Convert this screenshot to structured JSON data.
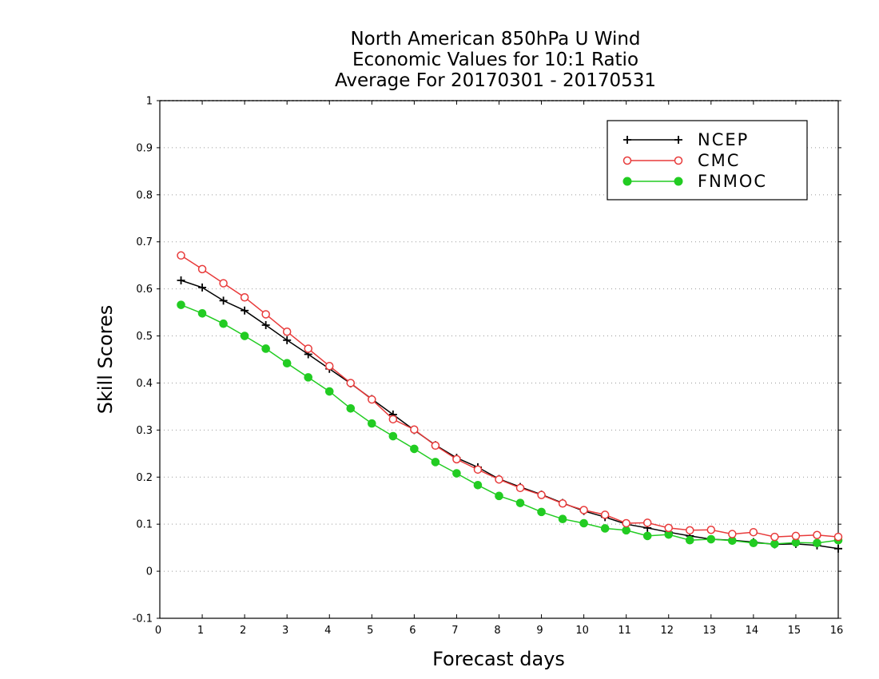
{
  "chart_data": {
    "type": "line",
    "title": [
      "North American 850hPa U Wind",
      "Economic Values for 10:1 Ratio",
      "Average For 20170301 - 20170531"
    ],
    "xlabel": "Forecast days",
    "ylabel": "Skill Scores",
    "xlim": [
      0,
      16
    ],
    "ylim": [
      -0.1,
      1
    ],
    "xticks": [
      0,
      1,
      2,
      3,
      4,
      5,
      6,
      7,
      8,
      9,
      10,
      11,
      12,
      13,
      14,
      15,
      16
    ],
    "yticks": [
      -0.1,
      0,
      0.1,
      0.2,
      0.3,
      0.4,
      0.5,
      0.6,
      0.7,
      0.8,
      0.9,
      1
    ],
    "ytick_labels": [
      "-0.1",
      "0",
      "0.1",
      "0.2",
      "0.3",
      "0.4",
      "0.5",
      "0.6",
      "0.7",
      "0.8",
      "0.9",
      "1"
    ],
    "grid": "horizontal-dotted",
    "legend_position": "top-right",
    "x": [
      0.5,
      1,
      1.5,
      2,
      2.5,
      3,
      3.5,
      4,
      4.5,
      5,
      5.5,
      6,
      6.5,
      7,
      7.5,
      8,
      8.5,
      9,
      9.5,
      10,
      10.5,
      11,
      11.5,
      12,
      12.5,
      13,
      13.5,
      14,
      14.5,
      15,
      15.5,
      16
    ],
    "series": [
      {
        "name": "NCEP",
        "color": "#000000",
        "marker": "plus",
        "values": [
          0.618,
          0.603,
          0.575,
          0.554,
          0.523,
          0.491,
          0.461,
          0.43,
          0.399,
          0.366,
          0.333,
          0.3,
          0.268,
          0.241,
          0.221,
          0.196,
          0.179,
          0.163,
          0.145,
          0.128,
          0.115,
          0.1,
          0.092,
          0.083,
          0.075,
          0.068,
          0.066,
          0.062,
          0.057,
          0.058,
          0.055,
          0.048
        ]
      },
      {
        "name": "CMC",
        "color": "#e83a3a",
        "marker": "open-circle",
        "values": [
          0.671,
          0.642,
          0.612,
          0.582,
          0.546,
          0.509,
          0.473,
          0.436,
          0.4,
          0.365,
          0.323,
          0.301,
          0.267,
          0.238,
          0.216,
          0.195,
          0.177,
          0.162,
          0.144,
          0.13,
          0.12,
          0.102,
          0.103,
          0.092,
          0.087,
          0.088,
          0.079,
          0.083,
          0.073,
          0.075,
          0.077,
          0.073
        ]
      },
      {
        "name": "FNMOC",
        "color": "#22cc22",
        "marker": "filled-circle",
        "values": [
          0.566,
          0.548,
          0.526,
          0.5,
          0.473,
          0.442,
          0.412,
          0.382,
          0.346,
          0.314,
          0.287,
          0.26,
          0.232,
          0.208,
          0.183,
          0.16,
          0.145,
          0.126,
          0.111,
          0.102,
          0.091,
          0.087,
          0.075,
          0.078,
          0.066,
          0.068,
          0.065,
          0.06,
          0.058,
          0.061,
          0.06,
          0.066
        ]
      }
    ]
  }
}
